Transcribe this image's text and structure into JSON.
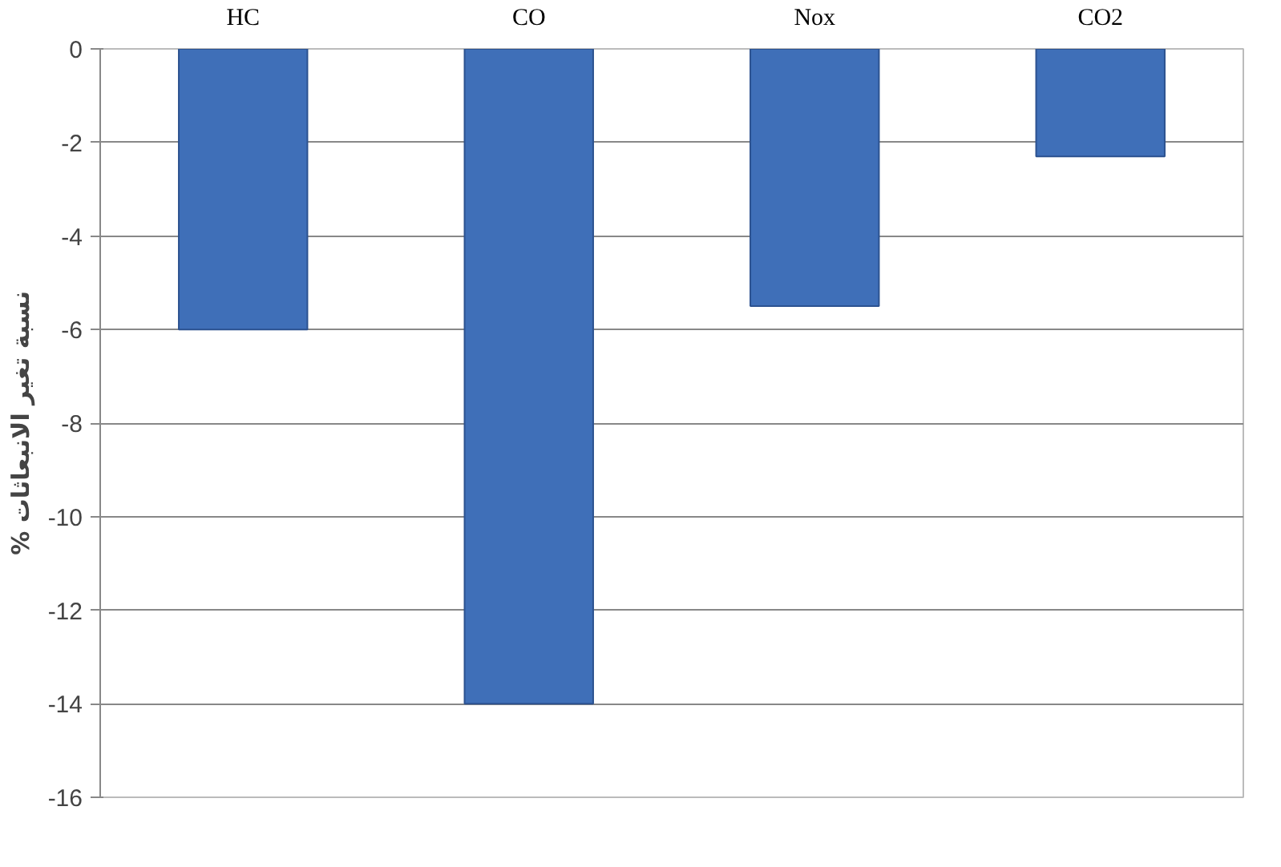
{
  "chart_data": {
    "type": "bar",
    "ylabel": "% نسبة تغير الانبعاثات",
    "categories": [
      "HC",
      "CO",
      "Nox",
      "CO2"
    ],
    "values": [
      -6,
      -14,
      -5.5,
      -2.3
    ],
    "color": "#3f6fb8",
    "ylim": [
      -16,
      0
    ],
    "yticks": [
      0,
      -2,
      -4,
      -6,
      -8,
      -10,
      -12,
      -14,
      -16
    ],
    "grid": "y"
  }
}
